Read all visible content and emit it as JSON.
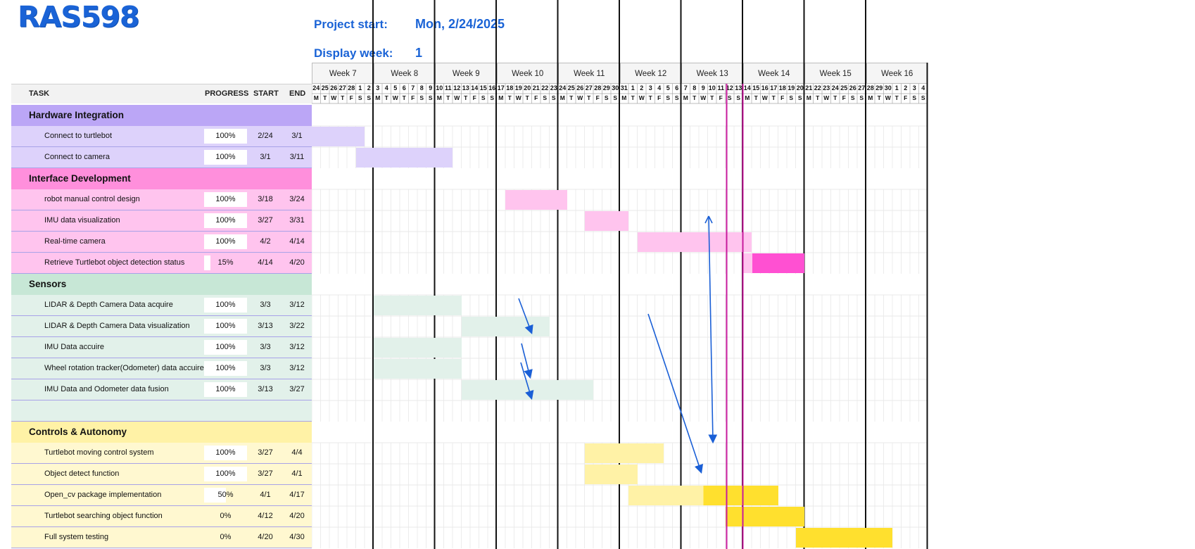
{
  "header": {
    "title": "RAS598",
    "project_start_label": "Project start:",
    "project_start_value": "Mon, 2/24/2025",
    "display_week_label": "Display week:",
    "display_week_value": "1"
  },
  "columns": {
    "task": "TASK",
    "progress": "PROGRESS",
    "start": "START",
    "end": "END"
  },
  "weeks": [
    "Week 7",
    "Week 8",
    "Week 9",
    "Week 10",
    "Week 11",
    "Week 12",
    "Week 13",
    "Week 14",
    "Week 15",
    "Week 16"
  ],
  "day_numbers": [
    "24",
    "25",
    "26",
    "27",
    "28",
    "1",
    "2",
    "3",
    "4",
    "5",
    "6",
    "7",
    "8",
    "9",
    "10",
    "11",
    "12",
    "13",
    "14",
    "15",
    "16",
    "17",
    "18",
    "19",
    "20",
    "21",
    "22",
    "23",
    "24",
    "25",
    "26",
    "27",
    "28",
    "29",
    "30",
    "31",
    "1",
    "2",
    "3",
    "4",
    "5",
    "6",
    "7",
    "8",
    "9",
    "10",
    "11",
    "12",
    "13",
    "14",
    "15",
    "16",
    "17",
    "18",
    "19",
    "20",
    "21",
    "22",
    "23",
    "24",
    "25",
    "26",
    "27",
    "28",
    "29",
    "30",
    "1",
    "2",
    "3",
    "4"
  ],
  "day_letters": [
    "M",
    "T",
    "W",
    "T",
    "F",
    "S",
    "S"
  ],
  "colors": {
    "hardware_header": "#bba6f6",
    "hardware_row": "#ddd2fb",
    "hardware_bar": "#ddd2fb",
    "interface_header": "#ff8fdc",
    "interface_row": "#ffc4ee",
    "interface_bar": "#ffc4ee",
    "interface_bar_dark": "#ff50d2",
    "sensors_header": "#c7e7d6",
    "sensors_row": "#e2f1ea",
    "sensors_bar": "#e2f1ea",
    "controls_header": "#fff2a6",
    "controls_row": "#fff8d0",
    "controls_bar": "#fff2a6",
    "controls_bar_dark": "#ffe02e",
    "today_line": "#c71b9c",
    "arrow": "#1a5fd6"
  },
  "sections": [
    {
      "name": "Hardware Integration",
      "key": "hardware",
      "tasks": [
        {
          "name": "Connect to turtlebot",
          "progress": "100%",
          "progress_value": 1.0,
          "start": "2/24",
          "end": "3/1"
        },
        {
          "name": "Connect to camera",
          "progress": "100%",
          "progress_value": 1.0,
          "start": "3/1",
          "end": "3/11"
        }
      ]
    },
    {
      "name": "Interface Development",
      "key": "interface",
      "tasks": [
        {
          "name": "robot manual control design",
          "progress": "100%",
          "progress_value": 1.0,
          "start": "3/18",
          "end": "3/24"
        },
        {
          "name": "IMU data visualization",
          "progress": "100%",
          "progress_value": 1.0,
          "start": "3/27",
          "end": "3/31"
        },
        {
          "name": "Real-time camera",
          "progress": "100%",
          "progress_value": 1.0,
          "start": "4/2",
          "end": "4/14"
        },
        {
          "name": "Retrieve Turtlebot object detection status",
          "progress": "15%",
          "progress_value": 0.15,
          "start": "4/14",
          "end": "4/20"
        }
      ]
    },
    {
      "name": "Sensors",
      "key": "sensors",
      "tasks": [
        {
          "name": "LIDAR & Depth Camera Data acquire",
          "progress": "100%",
          "progress_value": 1.0,
          "start": "3/3",
          "end": "3/12"
        },
        {
          "name": "LIDAR & Depth Camera Data visualization",
          "progress": "100%",
          "progress_value": 1.0,
          "start": "3/13",
          "end": "3/22"
        },
        {
          "name": "IMU Data accuire",
          "progress": "100%",
          "progress_value": 1.0,
          "start": "3/3",
          "end": "3/12"
        },
        {
          "name": "Wheel rotation tracker(Odometer) data accuire",
          "progress": "100%",
          "progress_value": 1.0,
          "start": "3/3",
          "end": "3/12"
        },
        {
          "name": "IMU Data and Odometer data fusion",
          "progress": "100%",
          "progress_value": 1.0,
          "start": "3/13",
          "end": "3/27"
        },
        {
          "name": "",
          "progress": "",
          "progress_value": 0,
          "start": "",
          "end": ""
        }
      ]
    },
    {
      "name": "Controls & Autonomy",
      "key": "controls",
      "tasks": [
        {
          "name": "Turtlebot moving control system",
          "progress": "100%",
          "progress_value": 1.0,
          "start": "3/27",
          "end": "4/4"
        },
        {
          "name": "Object detect function",
          "progress": "100%",
          "progress_value": 1.0,
          "start": "3/27",
          "end": "4/1"
        },
        {
          "name": "Open_cv package implementation",
          "progress": "50%",
          "progress_value": 0.5,
          "start": "4/1",
          "end": "4/17"
        },
        {
          "name": "Turtlebot searching object function",
          "progress": "0%",
          "progress_value": 0,
          "start": "4/12",
          "end": "4/20"
        },
        {
          "name": "Full system testing",
          "progress": "0%",
          "progress_value": 0,
          "start": "4/20",
          "end": "4/30"
        }
      ]
    }
  ]
}
